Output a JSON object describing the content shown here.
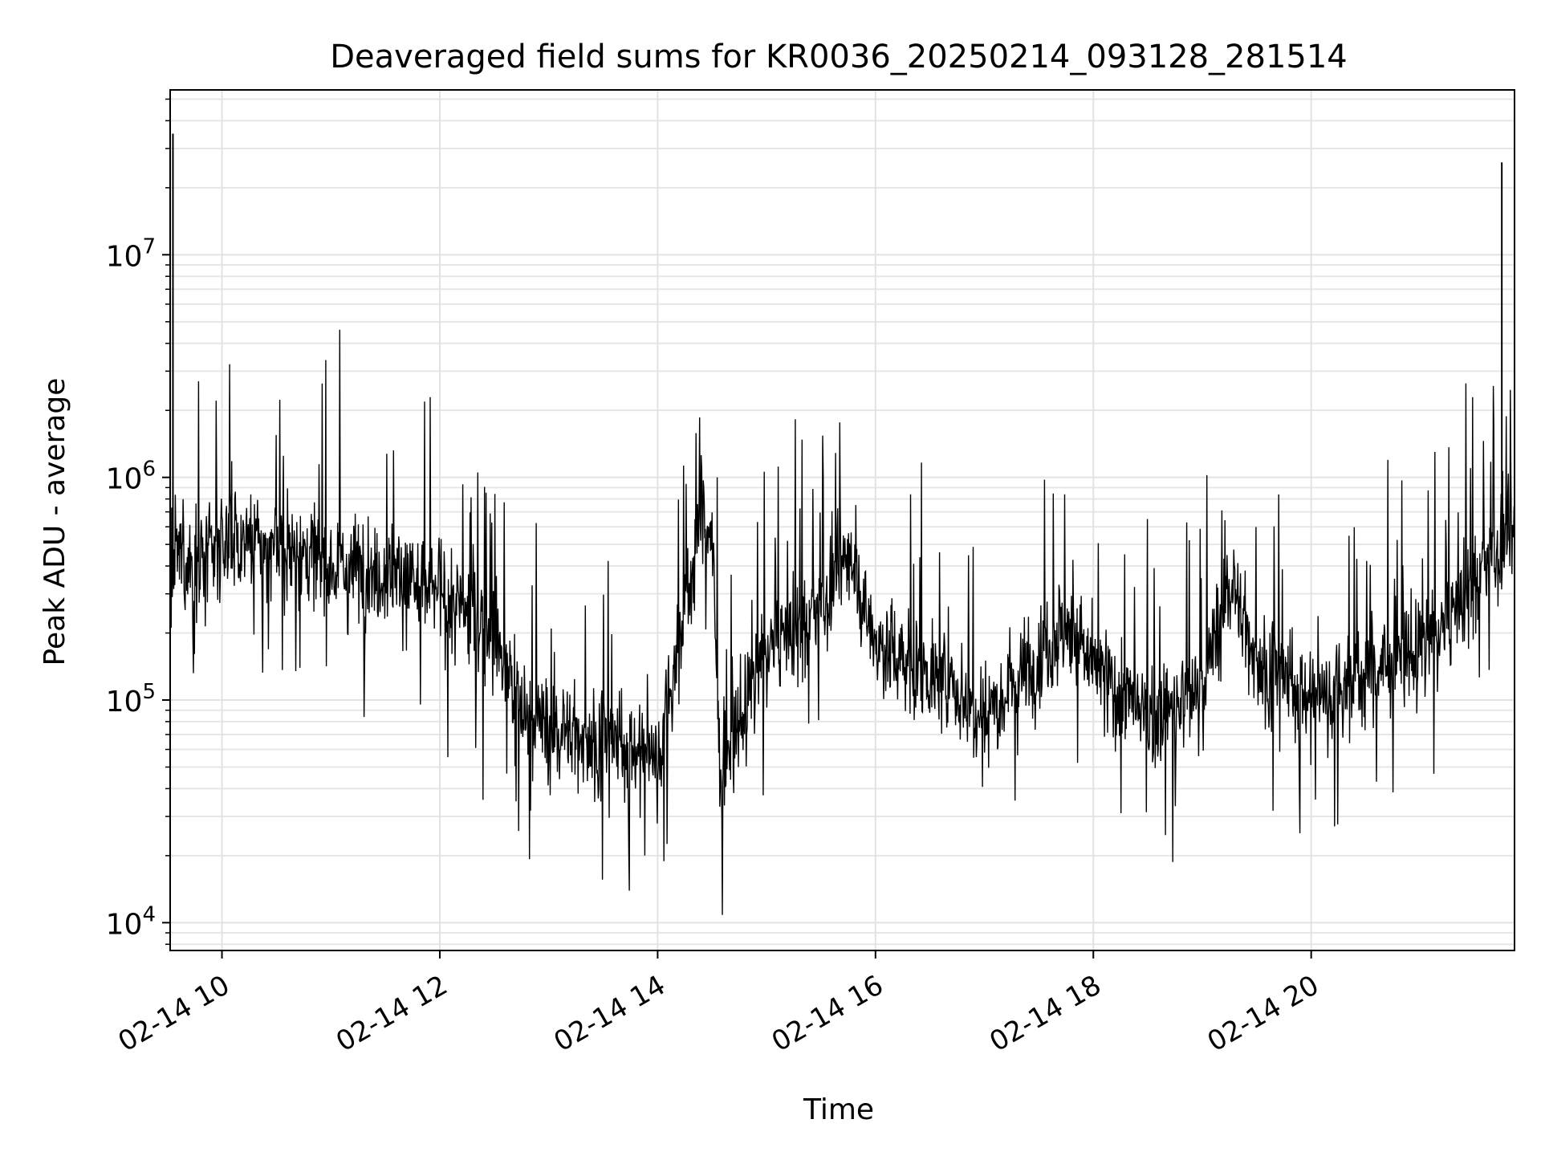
{
  "chart_data": {
    "type": "line",
    "title": "Deaveraged field sums for KR0036_20250214_093128_281514",
    "xlabel": "Time",
    "ylabel": "Peak ADU - average",
    "yscale": "log",
    "ylim": [
      7500,
      55000000
    ],
    "xlim": [
      "2025-02-14T09:31:28",
      "2025-02-14T21:52:00"
    ],
    "grid": true,
    "line_color": "#000000",
    "x_ticks": [
      {
        "label": "02-14 10",
        "time": "2025-02-14T10:00:00"
      },
      {
        "label": "02-14 12",
        "time": "2025-02-14T12:00:00"
      },
      {
        "label": "02-14 14",
        "time": "2025-02-14T14:00:00"
      },
      {
        "label": "02-14 16",
        "time": "2025-02-14T16:00:00"
      },
      {
        "label": "02-14 18",
        "time": "2025-02-14T18:00:00"
      },
      {
        "label": "02-14 20",
        "time": "2025-02-14T20:00:00"
      }
    ],
    "y_ticks": [
      {
        "base": "10",
        "exp": "4",
        "value": 10000
      },
      {
        "base": "10",
        "exp": "5",
        "value": 100000
      },
      {
        "base": "10",
        "exp": "6",
        "value": 1000000
      },
      {
        "base": "10",
        "exp": "7",
        "value": 10000000
      }
    ],
    "series": [
      {
        "points": [
          [
            "2025-02-14T09:31:28",
            300000
          ],
          [
            "2025-02-14T09:33:00",
            35000000
          ],
          [
            "2025-02-14T09:35:00",
            450000
          ],
          [
            "2025-02-14T09:45:00",
            380000
          ],
          [
            "2025-02-14T10:00:00",
            520000
          ],
          [
            "2025-02-14T10:30:00",
            480000
          ],
          [
            "2025-02-14T11:00:00",
            420000
          ],
          [
            "2025-02-14T11:30:00",
            380000
          ],
          [
            "2025-02-14T12:00:00",
            300000
          ],
          [
            "2025-02-14T12:30:00",
            200000
          ],
          [
            "2025-02-14T12:45:00",
            90000
          ],
          [
            "2025-02-14T13:00:00",
            75000
          ],
          [
            "2025-02-14T13:30:00",
            65000
          ],
          [
            "2025-02-14T14:00:00",
            55000
          ],
          [
            "2025-02-14T14:15:00",
            250000
          ],
          [
            "2025-02-14T14:25:00",
            750000
          ],
          [
            "2025-02-14T14:30:00",
            500000
          ],
          [
            "2025-02-14T14:35:00",
            40000
          ],
          [
            "2025-02-14T14:45:00",
            80000
          ],
          [
            "2025-02-14T15:00:00",
            170000
          ],
          [
            "2025-02-14T15:30:00",
            250000
          ],
          [
            "2025-02-14T15:45:00",
            450000
          ],
          [
            "2025-02-14T16:00:00",
            180000
          ],
          [
            "2025-02-14T16:30:00",
            130000
          ],
          [
            "2025-02-14T17:00:00",
            90000
          ],
          [
            "2025-02-14T17:30:00",
            160000
          ],
          [
            "2025-02-14T17:45:00",
            220000
          ],
          [
            "2025-02-14T18:00:00",
            140000
          ],
          [
            "2025-02-14T18:30:00",
            80000
          ],
          [
            "2025-02-14T19:00:00",
            110000
          ],
          [
            "2025-02-14T19:15:00",
            350000
          ],
          [
            "2025-02-14T19:30:00",
            150000
          ],
          [
            "2025-02-14T20:00:00",
            100000
          ],
          [
            "2025-02-14T20:30:00",
            130000
          ],
          [
            "2025-02-14T21:00:00",
            170000
          ],
          [
            "2025-02-14T21:15:00",
            220000
          ],
          [
            "2025-02-14T21:30:00",
            350000
          ],
          [
            "2025-02-14T21:45:00",
            26000000
          ],
          [
            "2025-02-14T21:52:00",
            550000
          ]
        ]
      }
    ]
  }
}
